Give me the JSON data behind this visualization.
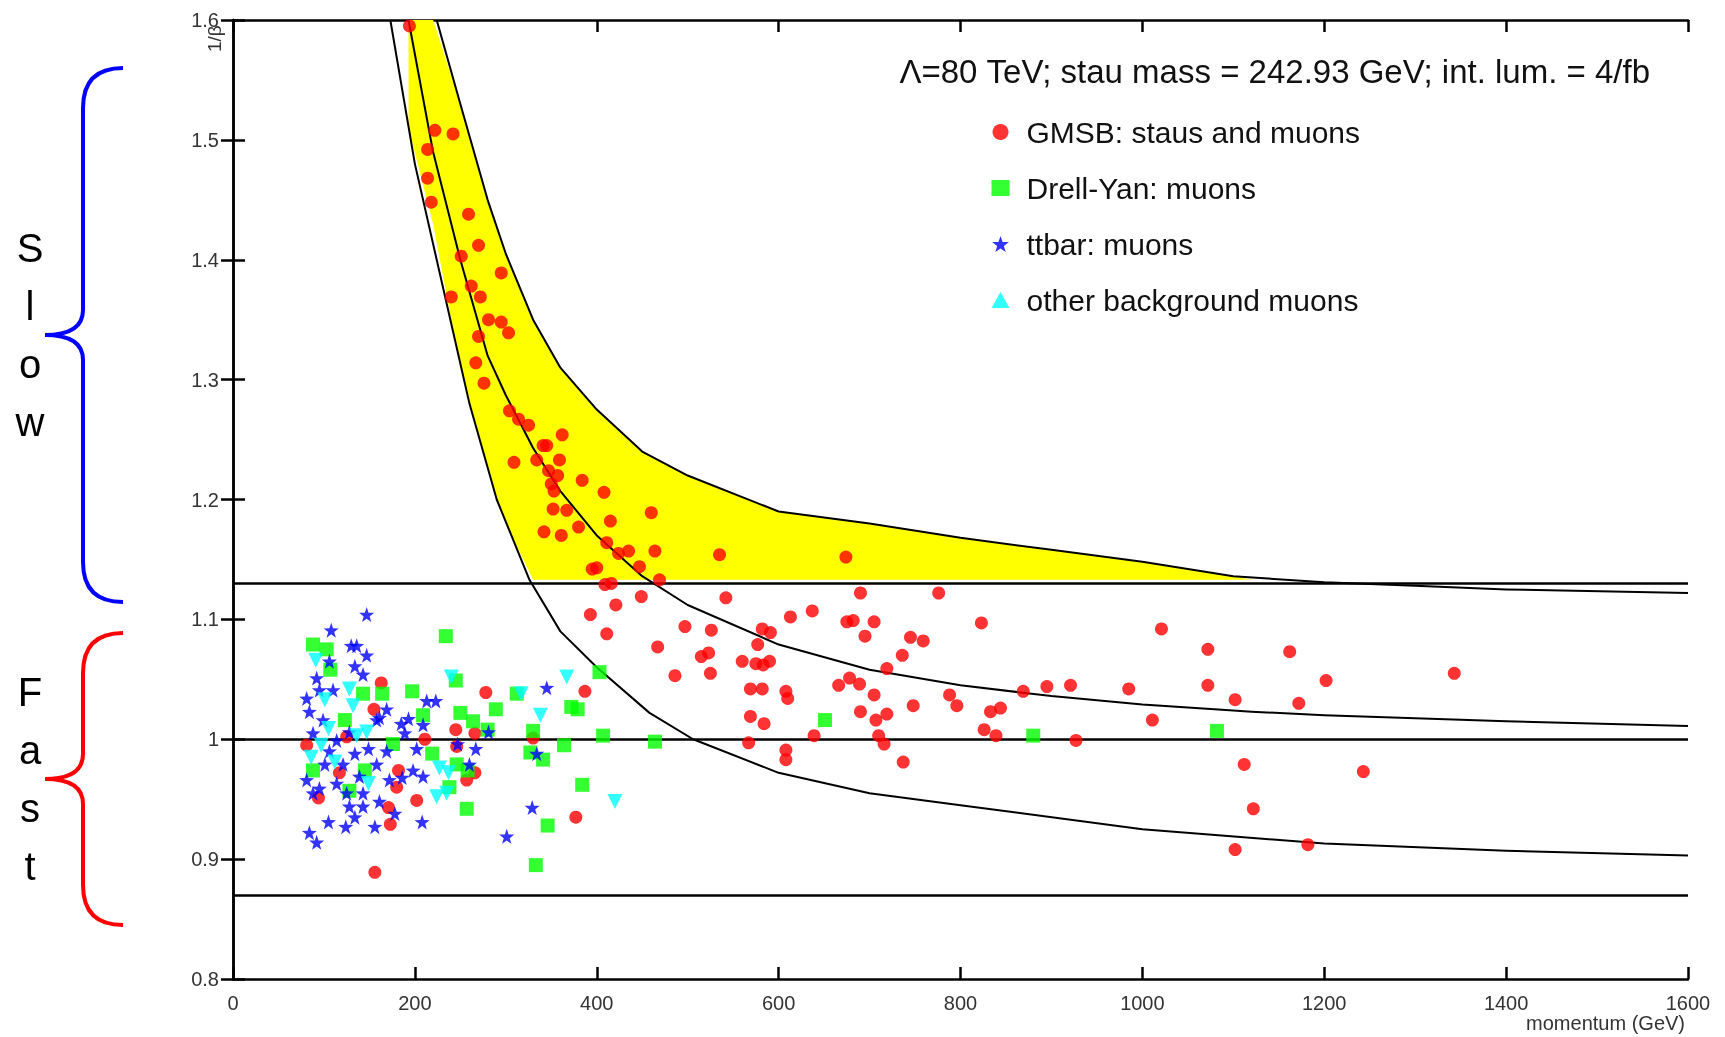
{
  "chart_data": {
    "type": "scatter",
    "title": "Λ=80 TeV; stau mass = 242.93 GeV; int. lum. = 4/fb",
    "xlabel": "momentum (GeV)",
    "ylabel": "1/β",
    "xlim": [
      0,
      1600
    ],
    "xticks": [
      0,
      200,
      400,
      600,
      800,
      1000,
      1200,
      1400,
      1600
    ],
    "ylim": [
      0.8,
      1.6
    ],
    "yticks": [
      0.8,
      0.9,
      1,
      1.1,
      1.2,
      1.3,
      1.4,
      1.5,
      1.6
    ],
    "legend": "top right",
    "grid": false,
    "series": [
      {
        "type": "line",
        "color": "#000000",
        "marker": "none",
        "x": [
          224,
          250,
          280,
          300,
          330,
          360,
          400,
          450,
          500,
          600,
          700,
          800,
          900,
          1000,
          1100,
          1200,
          1300,
          1400,
          1600
        ],
        "values": [
          1.6,
          1.53,
          1.45,
          1.405,
          1.35,
          1.31,
          1.275,
          1.24,
          1.22,
          1.19,
          1.18,
          1.168,
          1.158,
          1.148,
          1.136,
          1.131,
          1.128,
          1.125,
          1.122
        ]
      },
      {
        "type": "line",
        "color": "#000000",
        "marker": "none",
        "x": [
          193,
          220,
          250,
          280,
          300,
          330,
          360,
          400,
          450,
          500,
          600,
          700,
          800,
          900,
          1000,
          1100,
          1120,
          1200,
          1400,
          1600
        ],
        "values": [
          1.6,
          1.49,
          1.4,
          1.32,
          1.287,
          1.243,
          1.207,
          1.17,
          1.136,
          1.112,
          1.079,
          1.058,
          1.045,
          1.036,
          1.029,
          1.024,
          1.023,
          1.02,
          1.015,
          1.011
        ],
        "upper": [
          1.6,
          1.6,
          1.53,
          1.45,
          1.405,
          1.35,
          1.31,
          1.275,
          1.24,
          1.22,
          1.19,
          1.18,
          1.168,
          1.158,
          1.148,
          1.136,
          1.133,
          null,
          null,
          null
        ],
        "lower": [
          1.51,
          1.43,
          1.31,
          1.225,
          1.18,
          1.133,
          1.133,
          1.133,
          1.133,
          1.133,
          1.133,
          1.133,
          1.133,
          1.133,
          1.133,
          1.133,
          1.133,
          null,
          null,
          null
        ]
      },
      {
        "type": "line",
        "color": "#000000",
        "marker": "none",
        "x": [
          173,
          200,
          230,
          260,
          290,
          326,
          360,
          400,
          458,
          506,
          600,
          700,
          800,
          1000,
          1200,
          1400,
          1600
        ],
        "values": [
          1.6,
          1.48,
          1.38,
          1.28,
          1.2,
          1.133,
          1.09,
          1.06,
          1.022,
          1.0,
          0.972,
          0.955,
          0.945,
          0.925,
          0.913,
          0.907,
          0.903
        ]
      },
      {
        "name": "GMSB: staus and muons",
        "color": "#ff0000",
        "marker": "circle",
        "x": [
          194,
          222,
          242,
          214,
          214,
          218,
          259,
          270,
          251,
          295,
          262,
          240,
          272,
          281,
          295,
          303,
          270,
          267,
          276,
          304,
          314,
          325,
          362,
          341,
          345,
          309,
          334,
          359,
          347,
          357,
          350,
          353,
          384,
          408,
          352,
          367,
          460,
          415,
          342,
          361,
          380,
          411,
          424,
          435,
          464,
          447,
          395,
          400,
          535,
          674,
          409,
          416,
          469,
          449,
          542,
          690,
          776,
          421,
          411,
          467,
          486,
          497,
          526,
          515,
          523,
          525,
          560,
          575,
          583,
          590,
          577,
          582,
          591,
          613,
          637,
          569,
          582,
          608,
          610,
          569,
          584,
          567,
          608,
          608,
          639,
          666,
          678,
          689,
          675,
          682,
          705,
          695,
          719,
          705,
          690,
          707,
          719,
          710,
          716,
          737,
          736,
          745,
          759,
          748,
          788,
          796,
          823,
          826,
          839,
          833,
          844,
          869,
          895,
          921,
          927,
          1021,
          1072,
          1162,
          985,
          1072,
          1102,
          1202,
          1172,
          1343,
          1011,
          1112,
          1243,
          1122,
          1102,
          1182,
          393,
          163,
          278,
          387,
          155,
          245,
          266,
          211,
          246,
          330,
          125,
          81,
          182,
          266,
          257,
          117,
          180,
          202,
          171,
          173,
          94,
          377,
          156
        ],
        "values": [
          1.595,
          1.508,
          1.505,
          1.492,
          1.468,
          1.448,
          1.438,
          1.412,
          1.403,
          1.389,
          1.378,
          1.369,
          1.369,
          1.35,
          1.348,
          1.339,
          1.336,
          1.314,
          1.297,
          1.274,
          1.267,
          1.262,
          1.254,
          1.245,
          1.245,
          1.231,
          1.233,
          1.233,
          1.224,
          1.22,
          1.213,
          1.207,
          1.216,
          1.206,
          1.192,
          1.191,
          1.189,
          1.182,
          1.173,
          1.17,
          1.177,
          1.164,
          1.155,
          1.157,
          1.157,
          1.144,
          1.142,
          1.143,
          1.154,
          1.152,
          1.129,
          1.13,
          1.133,
          1.119,
          1.118,
          1.122,
          1.122,
          1.112,
          1.088,
          1.077,
          1.053,
          1.094,
          1.091,
          1.069,
          1.072,
          1.055,
          1.065,
          1.063,
          1.062,
          1.065,
          1.079,
          1.092,
          1.089,
          1.102,
          1.107,
          1.042,
          1.042,
          1.04,
          1.034,
          1.019,
          1.013,
          0.997,
          0.991,
          0.983,
          1.003,
          1.045,
          1.051,
          1.046,
          1.098,
          1.099,
          1.098,
          1.086,
          1.059,
          1.037,
          1.023,
          1.016,
          1.021,
          1.003,
          0.996,
          0.981,
          1.07,
          1.085,
          1.082,
          1.028,
          1.037,
          1.028,
          1.097,
          1.008,
          1.003,
          1.023,
          1.026,
          1.04,
          1.044,
          1.045,
          0.999,
          1.092,
          1.075,
          1.073,
          1.042,
          1.045,
          1.033,
          1.049,
          1.03,
          1.055,
          1.016,
          0.979,
          0.973,
          0.942,
          0.908,
          0.912,
          1.104,
          1.047,
          1.039,
          1.04,
          1.025,
          1.008,
          1.005,
          1.0,
          0.994,
          1.001,
          1.002,
          0.995,
          0.974,
          0.972,
          0.966,
          0.972,
          0.96,
          0.949,
          0.943,
          0.929,
          0.951,
          0.935,
          0.889
        ]
      },
      {
        "name": "Drell-Yan: muons",
        "color": "#00ff00",
        "marker": "square",
        "x": [
          88,
          103,
          234,
          107,
          164,
          197,
          143,
          245,
          312,
          403,
          250,
          264,
          289,
          209,
          280,
          123,
          330,
          372,
          379,
          407,
          176,
          219,
          327,
          341,
          364,
          246,
          258,
          145,
          238,
          384,
          257,
          346,
          333,
          128,
          88,
          464,
          651,
          880,
          1082
        ],
        "values": [
          1.079,
          1.075,
          1.086,
          1.058,
          1.038,
          1.04,
          1.038,
          1.049,
          1.038,
          1.056,
          1.022,
          1.015,
          1.025,
          1.02,
          1.008,
          1.016,
          1.007,
          1.027,
          1.025,
          1.003,
          0.996,
          0.988,
          0.989,
          0.983,
          0.995,
          0.979,
          0.974,
          0.974,
          0.96,
          0.962,
          0.942,
          0.928,
          0.895,
          0.957,
          0.974,
          0.998,
          1.016,
          1.003,
          1.007
        ]
      },
      {
        "name": "ttbar: muons",
        "color": "#0000ff",
        "marker": "star",
        "x": [
          147,
          108,
          130,
          136,
          147,
          134,
          106,
          143,
          92,
          81,
          110,
          213,
          223,
          193,
          185,
          209,
          189,
          99,
          158,
          88,
          114,
          106,
          134,
          149,
          169,
          202,
          247,
          267,
          281,
          345,
          260,
          334,
          198,
          209,
          186,
          81,
          95,
          114,
          125,
          143,
          161,
          128,
          143,
          178,
          105,
          124,
          134,
          156,
          208,
          84,
          92,
          329,
          301,
          169,
          161,
          95,
          84,
          128,
          101,
          121,
          158,
          172,
          139,
          88
        ],
        "values": [
          1.104,
          1.091,
          1.078,
          1.078,
          1.07,
          1.061,
          1.065,
          1.054,
          1.051,
          1.034,
          1.041,
          1.032,
          1.032,
          1.017,
          1.013,
          1.012,
          1.005,
          1.016,
          1.016,
          1.005,
          0.999,
          0.99,
          0.988,
          0.992,
          0.99,
          0.992,
          0.996,
          0.992,
          1.006,
          1.043,
          0.979,
          0.988,
          0.974,
          0.969,
          0.968,
          0.966,
          0.959,
          0.963,
          0.955,
          0.955,
          0.948,
          0.944,
          0.944,
          0.938,
          0.931,
          0.927,
          0.935,
          0.927,
          0.931,
          0.922,
          0.914,
          0.943,
          0.919,
          1.025,
          1.018,
          1.041,
          1.023,
          1.006,
          0.979,
          0.979,
          0.979,
          0.966,
          0.969,
          0.955
        ]
      },
      {
        "name": "other background muons",
        "color": "#00ffff",
        "marker": "triangle",
        "x": [
          91,
          240,
          367,
          128,
          317,
          338,
          101,
          132,
          105,
          147,
          136,
          97,
          86,
          112,
          149,
          227,
          237,
          224,
          235,
          420
        ],
        "values": [
          1.066,
          1.052,
          1.052,
          1.042,
          1.038,
          1.02,
          1.033,
          1.028,
          1.009,
          1.006,
          1.003,
          0.995,
          0.985,
          0.981,
          0.963,
          0.976,
          0.972,
          0.952,
          0.955,
          0.948
        ]
      }
    ],
    "ref_lines": [
      {
        "axis": "y",
        "value": 1.133,
        "color": "#000000"
      },
      {
        "axis": "y",
        "value": 1,
        "color": "#000000"
      },
      {
        "axis": "y",
        "value": 0.868,
        "color": "#000000"
      }
    ],
    "annotations": [
      "Slow",
      "Fast"
    ]
  }
}
